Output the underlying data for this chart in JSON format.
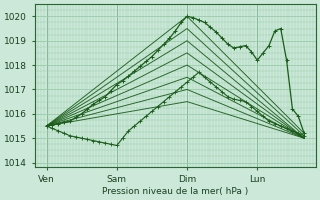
{
  "bg_color": "#cce8d8",
  "grid_color": "#99ccaa",
  "line_color": "#1a5c1a",
  "xlabel": "Pression niveau de la mer( hPa )",
  "xlim": [
    0,
    96
  ],
  "ylim": [
    1013.8,
    1020.5
  ],
  "yticks": [
    1014,
    1015,
    1016,
    1017,
    1018,
    1019,
    1020
  ],
  "xtick_positions": [
    4,
    28,
    52,
    76
  ],
  "xtick_labels": [
    "Ven",
    "Sam",
    "Dim",
    "Lun"
  ],
  "vlines": [
    4,
    28,
    52,
    76
  ],
  "fan_lines": [
    {
      "x": [
        4,
        52,
        92
      ],
      "y": [
        1015.5,
        1020.0,
        1015.2
      ]
    },
    {
      "x": [
        4,
        52,
        92
      ],
      "y": [
        1015.5,
        1019.5,
        1015.1
      ]
    },
    {
      "x": [
        4,
        52,
        92
      ],
      "y": [
        1015.5,
        1019.0,
        1015.0
      ]
    },
    {
      "x": [
        4,
        52,
        92
      ],
      "y": [
        1015.5,
        1018.5,
        1015.0
      ]
    },
    {
      "x": [
        4,
        52,
        92
      ],
      "y": [
        1015.5,
        1018.0,
        1015.0
      ]
    },
    {
      "x": [
        4,
        52,
        92
      ],
      "y": [
        1015.5,
        1017.5,
        1015.0
      ]
    },
    {
      "x": [
        4,
        52,
        92
      ],
      "y": [
        1015.5,
        1017.0,
        1015.0
      ]
    },
    {
      "x": [
        4,
        52,
        92
      ],
      "y": [
        1015.5,
        1016.5,
        1015.0
      ]
    }
  ],
  "main_line": {
    "x": [
      4,
      6,
      8,
      10,
      12,
      14,
      16,
      18,
      20,
      22,
      24,
      26,
      28,
      30,
      32,
      34,
      36,
      38,
      40,
      42,
      44,
      46,
      48,
      50,
      52,
      54,
      56,
      58,
      60,
      62,
      64,
      66,
      68,
      70,
      72,
      74,
      76,
      78,
      80,
      82,
      84,
      86,
      88,
      90,
      92
    ],
    "y": [
      1015.5,
      1015.55,
      1015.6,
      1015.65,
      1015.7,
      1015.85,
      1016.0,
      1016.2,
      1016.4,
      1016.55,
      1016.7,
      1016.95,
      1017.2,
      1017.35,
      1017.55,
      1017.75,
      1017.95,
      1018.15,
      1018.35,
      1018.6,
      1018.85,
      1019.1,
      1019.4,
      1019.75,
      1020.0,
      1019.95,
      1019.85,
      1019.75,
      1019.55,
      1019.35,
      1019.1,
      1018.85,
      1018.7,
      1018.75,
      1018.8,
      1018.55,
      1018.2,
      1018.5,
      1018.8,
      1019.4,
      1019.5,
      1018.2,
      1016.2,
      1015.9,
      1015.2
    ]
  },
  "extra_lines": [
    {
      "x": [
        4,
        6,
        8,
        10,
        12,
        14,
        16,
        18,
        20,
        22,
        24,
        26,
        28,
        30,
        32,
        34,
        36,
        38,
        40,
        42,
        44,
        46,
        48,
        50,
        52,
        54,
        56,
        58,
        60,
        62,
        64,
        66,
        68,
        70,
        72,
        74,
        76,
        78,
        80,
        82,
        84,
        86,
        88,
        90,
        92
      ],
      "y": [
        1015.5,
        1015.4,
        1015.3,
        1015.2,
        1015.1,
        1015.05,
        1015.0,
        1014.95,
        1014.9,
        1014.85,
        1014.8,
        1014.75,
        1014.7,
        1015.0,
        1015.3,
        1015.5,
        1015.7,
        1015.9,
        1016.1,
        1016.3,
        1016.5,
        1016.7,
        1016.9,
        1017.1,
        1017.3,
        1017.5,
        1017.7,
        1017.5,
        1017.3,
        1017.1,
        1016.9,
        1016.7,
        1016.6,
        1016.55,
        1016.5,
        1016.3,
        1016.1,
        1015.9,
        1015.7,
        1015.6,
        1015.5,
        1015.4,
        1015.3,
        1015.2,
        1015.1
      ]
    }
  ]
}
